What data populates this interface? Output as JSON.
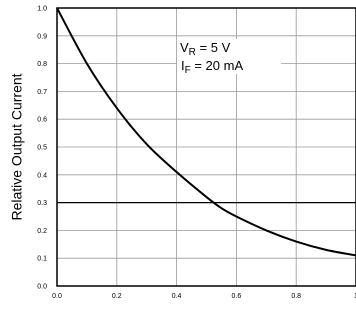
{
  "chart_data": {
    "type": "line",
    "title": "",
    "xlabel": "",
    "ylabel": "Relative Output Current",
    "xlim": [
      0,
      1.0
    ],
    "ylim": [
      0,
      1.0
    ],
    "x_ticks": [
      "0.0",
      "0.2",
      "0.4",
      "0.6",
      "0.8",
      "1"
    ],
    "y_ticks": [
      "0.0",
      "0.1",
      "0.2",
      "0.3",
      "0.4",
      "0.5",
      "0.6",
      "0.7",
      "0.8",
      "0.9",
      "1.0"
    ],
    "grid": true,
    "annotation": {
      "line1_main": "V",
      "line1_sub": "R",
      "line1_rest": " = 5 V",
      "line2_main": "I",
      "line2_sub": "F",
      "line2_rest": " = 20 mA"
    },
    "series": [
      {
        "color": "#000000",
        "x": [
          0.0,
          0.1,
          0.2,
          0.3,
          0.4,
          0.5,
          0.55,
          0.6,
          0.7,
          0.8,
          0.9,
          1.0
        ],
        "y": [
          1.0,
          0.8,
          0.64,
          0.51,
          0.41,
          0.32,
          0.28,
          0.25,
          0.2,
          0.16,
          0.13,
          0.11
        ]
      }
    ]
  }
}
